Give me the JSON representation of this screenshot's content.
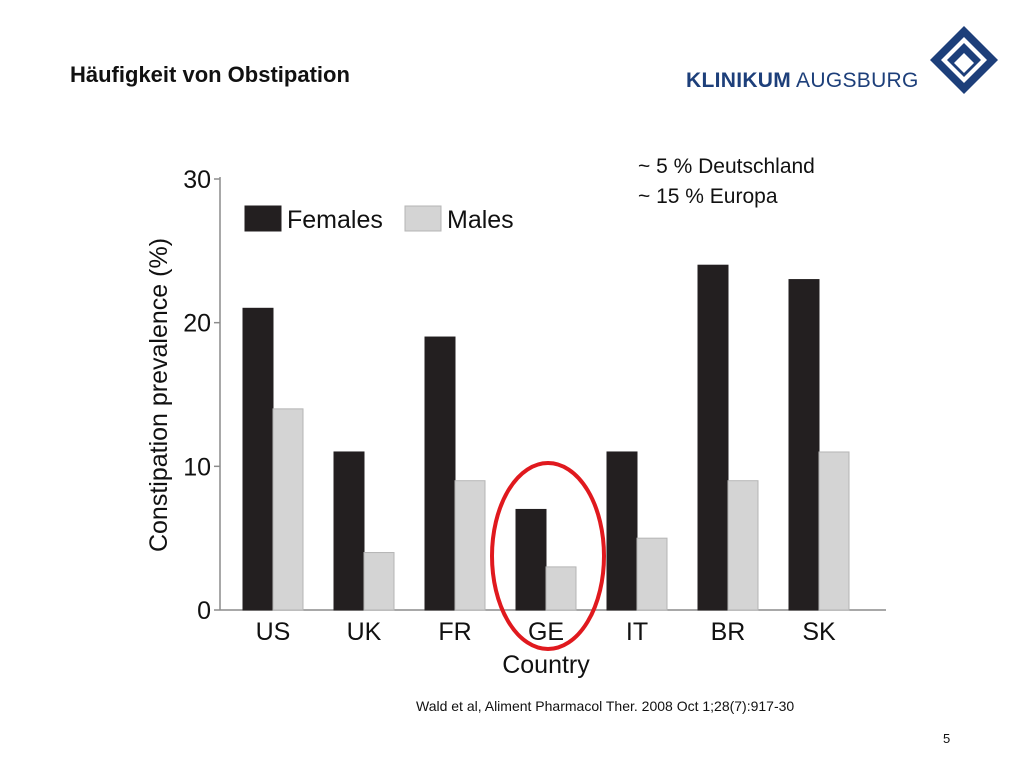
{
  "slide": {
    "title": "Häufigkeit von Obstipation",
    "logo": {
      "text_bold": "KLINIKUM",
      "text_regular": "AUGSBURG",
      "icon": "klinikum-augsburg-diamond-logo",
      "color": "#1d3f7a"
    },
    "annotations": [
      "~ 5 % Deutschland",
      "~ 15 % Europa"
    ],
    "citation": "Wald et al, Aliment Pharmacol Ther. 2008 Oct 1;28(7):917-30",
    "page_number": "5",
    "highlight": {
      "category": "GE",
      "shape": "ellipse",
      "color": "#e0191e"
    }
  },
  "chart_data": {
    "type": "bar",
    "categories": [
      "US",
      "UK",
      "FR",
      "GE",
      "IT",
      "BR",
      "SK"
    ],
    "series": [
      {
        "name": "Females",
        "color": "#231f20",
        "values": [
          21,
          11,
          19,
          7,
          11,
          24,
          23
        ]
      },
      {
        "name": "Males",
        "color": "#d4d4d4",
        "values": [
          14,
          4,
          9,
          3,
          5,
          9,
          11
        ]
      }
    ],
    "xlabel": "Country",
    "ylabel": "Constipation prevalence (%)",
    "ylim": [
      0,
      30
    ],
    "yticks": [
      0,
      10,
      20,
      30
    ],
    "grid": false,
    "legend_position": "top-left"
  }
}
